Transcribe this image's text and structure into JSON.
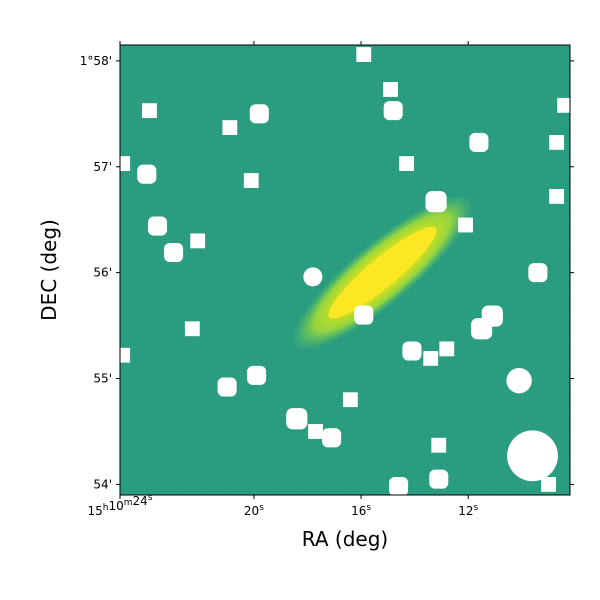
{
  "chart_data": {
    "type": "heatmap",
    "title": "",
    "xlabel": "RA (deg)",
    "ylabel": "DEC (deg)",
    "x_ticks": [
      {
        "value": 25.0,
        "label_main": "15",
        "sup1": "h",
        "mid": "10",
        "sup2": "m",
        "tail": "24",
        "sup3": "s"
      },
      {
        "value": 20.0,
        "label_main": "20",
        "sup1": "s"
      },
      {
        "value": 16.0,
        "label_main": "16",
        "sup1": "s"
      },
      {
        "value": 12.0,
        "label_main": "12",
        "sup1": "s"
      }
    ],
    "y_ticks": [
      {
        "value": 58,
        "label": "1°58'"
      },
      {
        "value": 57,
        "label": "57'"
      },
      {
        "value": 56,
        "label": "56'"
      },
      {
        "value": 55,
        "label": "55'"
      },
      {
        "value": 54,
        "label": "54'"
      }
    ],
    "x_extra_ticks_seconds": [
      22.0,
      18.0,
      14.0,
      10.0
    ],
    "xlim_seconds": [
      25.0,
      8.2
    ],
    "ylim_arcmin": [
      53.9,
      58.15
    ],
    "colormap": "viridis",
    "background_color": "#2a9d80",
    "mask_color": "#ffffff",
    "galaxy": {
      "center_ra_s": 15.2,
      "center_dec_arcmin": 56.0,
      "major_arcmin": 1.75,
      "minor_arcmin": 0.34,
      "position_angle_deg": 40,
      "core_color": "#fde725",
      "halo_color": "#a0da39"
    },
    "masks": [
      {
        "ra_s": 15.9,
        "dec": 58.06,
        "shape": "square",
        "size": 0.14
      },
      {
        "ra_s": 14.9,
        "dec": 57.73,
        "shape": "square",
        "size": 0.14
      },
      {
        "ra_s": 14.8,
        "dec": 57.53,
        "shape": "rounded",
        "size": 0.18
      },
      {
        "ra_s": 23.9,
        "dec": 57.53,
        "shape": "square",
        "size": 0.14
      },
      {
        "ra_s": 20.9,
        "dec": 57.37,
        "shape": "square",
        "size": 0.14
      },
      {
        "ra_s": 19.8,
        "dec": 57.5,
        "shape": "rounded",
        "size": 0.18
      },
      {
        "ra_s": 8.4,
        "dec": 57.58,
        "shape": "square",
        "size": 0.14
      },
      {
        "ra_s": 11.6,
        "dec": 57.23,
        "shape": "rounded",
        "size": 0.18
      },
      {
        "ra_s": 8.7,
        "dec": 57.23,
        "shape": "square",
        "size": 0.14
      },
      {
        "ra_s": 14.3,
        "dec": 57.03,
        "shape": "square",
        "size": 0.14
      },
      {
        "ra_s": 24.9,
        "dec": 57.03,
        "shape": "square",
        "size": 0.14
      },
      {
        "ra_s": 24.0,
        "dec": 56.93,
        "shape": "rounded",
        "size": 0.18
      },
      {
        "ra_s": 20.1,
        "dec": 56.87,
        "shape": "square",
        "size": 0.14
      },
      {
        "ra_s": 8.7,
        "dec": 56.72,
        "shape": "square",
        "size": 0.14
      },
      {
        "ra_s": 13.2,
        "dec": 56.67,
        "shape": "rounded",
        "size": 0.2
      },
      {
        "ra_s": 23.6,
        "dec": 56.44,
        "shape": "rounded",
        "size": 0.18
      },
      {
        "ra_s": 12.1,
        "dec": 56.45,
        "shape": "square",
        "size": 0.14
      },
      {
        "ra_s": 22.1,
        "dec": 56.3,
        "shape": "square",
        "size": 0.14
      },
      {
        "ra_s": 23.0,
        "dec": 56.19,
        "shape": "rounded",
        "size": 0.18
      },
      {
        "ra_s": 17.8,
        "dec": 55.96,
        "shape": "circle",
        "size": 0.18
      },
      {
        "ra_s": 9.4,
        "dec": 56.0,
        "shape": "rounded",
        "size": 0.18
      },
      {
        "ra_s": 15.9,
        "dec": 55.6,
        "shape": "rounded",
        "size": 0.18
      },
      {
        "ra_s": 11.1,
        "dec": 55.59,
        "shape": "rounded",
        "size": 0.2
      },
      {
        "ra_s": 11.5,
        "dec": 55.47,
        "shape": "rounded",
        "size": 0.2
      },
      {
        "ra_s": 22.3,
        "dec": 55.47,
        "shape": "square",
        "size": 0.14
      },
      {
        "ra_s": 24.9,
        "dec": 55.22,
        "shape": "square",
        "size": 0.14
      },
      {
        "ra_s": 14.1,
        "dec": 55.26,
        "shape": "rounded",
        "size": 0.18
      },
      {
        "ra_s": 13.4,
        "dec": 55.19,
        "shape": "square",
        "size": 0.14
      },
      {
        "ra_s": 12.8,
        "dec": 55.28,
        "shape": "square",
        "size": 0.14
      },
      {
        "ra_s": 10.1,
        "dec": 54.98,
        "shape": "circle",
        "size": 0.24
      },
      {
        "ra_s": 19.9,
        "dec": 55.03,
        "shape": "rounded",
        "size": 0.18
      },
      {
        "ra_s": 21.0,
        "dec": 54.92,
        "shape": "rounded",
        "size": 0.18
      },
      {
        "ra_s": 16.4,
        "dec": 54.8,
        "shape": "square",
        "size": 0.14
      },
      {
        "ra_s": 18.4,
        "dec": 54.62,
        "shape": "rounded",
        "size": 0.2
      },
      {
        "ra_s": 17.7,
        "dec": 54.5,
        "shape": "square",
        "size": 0.14
      },
      {
        "ra_s": 17.1,
        "dec": 54.44,
        "shape": "rounded",
        "size": 0.18
      },
      {
        "ra_s": 13.1,
        "dec": 54.37,
        "shape": "square",
        "size": 0.14
      },
      {
        "ra_s": 9.6,
        "dec": 54.27,
        "shape": "circle",
        "size": 0.48
      },
      {
        "ra_s": 13.1,
        "dec": 54.05,
        "shape": "rounded",
        "size": 0.18
      },
      {
        "ra_s": 14.6,
        "dec": 53.98,
        "shape": "rounded",
        "size": 0.18
      },
      {
        "ra_s": 9.0,
        "dec": 54.0,
        "shape": "square",
        "size": 0.14
      }
    ]
  }
}
